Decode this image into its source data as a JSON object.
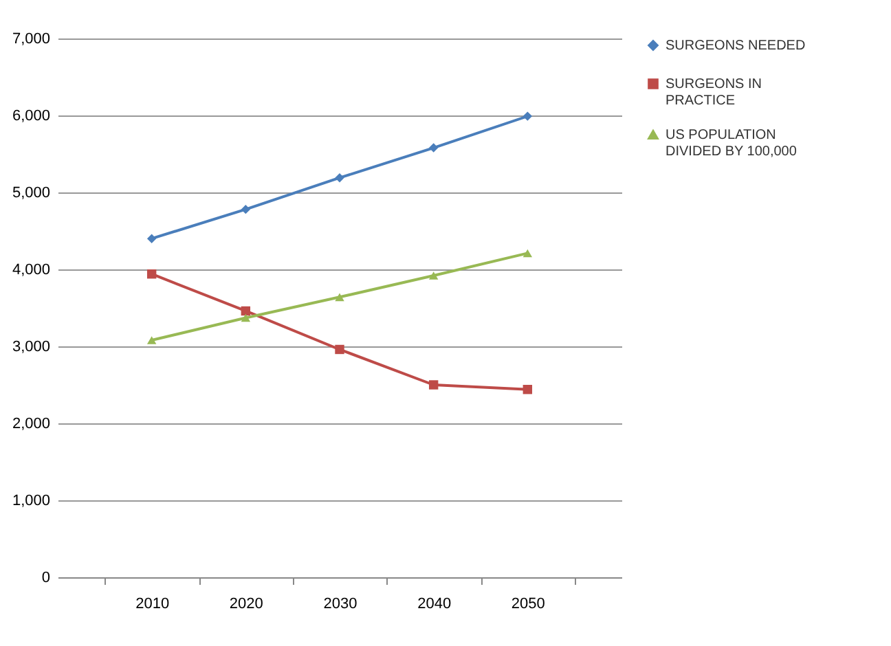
{
  "chart_data": {
    "type": "line",
    "categories": [
      "2010",
      "2020",
      "2030",
      "2040",
      "2050"
    ],
    "series": [
      {
        "name": "SURGEONS NEEDED",
        "color": "#4a7ebb",
        "marker": "diamond",
        "values": [
          4400,
          4780,
          5190,
          5580,
          5990
        ]
      },
      {
        "name": "SURGEONS IN PRACTICE",
        "color": "#be4b48",
        "marker": "square",
        "values": [
          3940,
          3460,
          2960,
          2500,
          2440
        ]
      },
      {
        "name": "US POPULATION DIVIDED BY 100,000",
        "color": "#98b954",
        "marker": "triangle",
        "values": [
          3080,
          3370,
          3640,
          3920,
          4210
        ]
      }
    ],
    "ylim": [
      0,
      7000
    ],
    "yticks": [
      0,
      {
        "value": 1000,
        "label": "1,000"
      },
      {
        "value": 2000,
        "label": "2,000"
      },
      {
        "value": 3000,
        "label": "3,000"
      },
      {
        "value": 4000,
        "label": "4,000"
      },
      {
        "value": 5000,
        "label": "5,000"
      },
      {
        "value": 6000,
        "label": "6,000"
      },
      {
        "value": 7000,
        "label": "7,000"
      }
    ],
    "grid": "y",
    "legend": "right",
    "line_style": "solid"
  }
}
